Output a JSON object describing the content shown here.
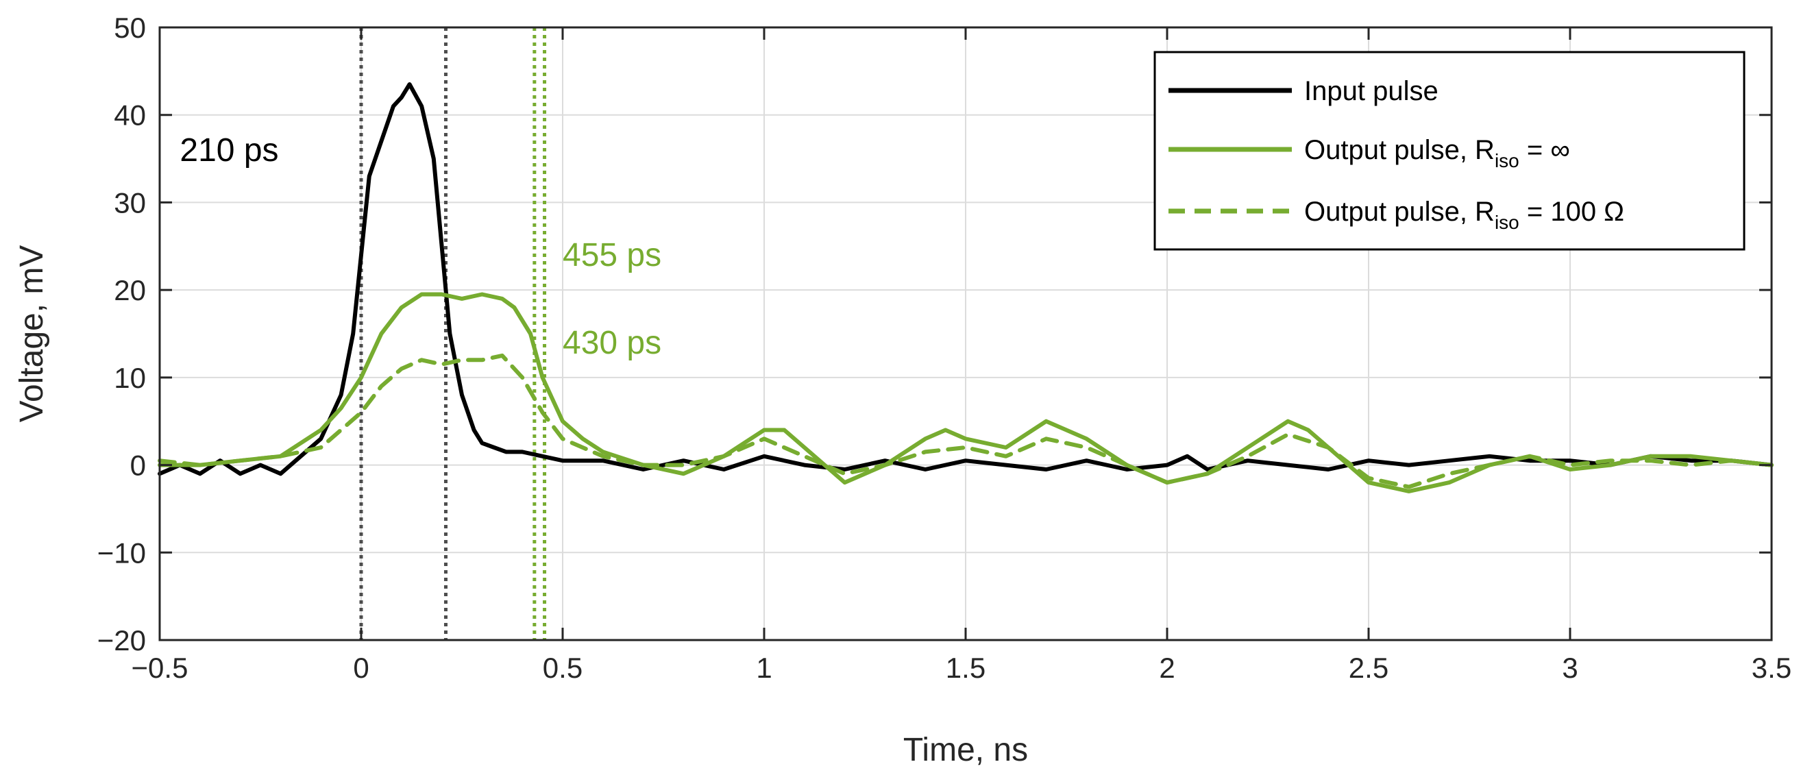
{
  "chart_data": {
    "type": "line",
    "xlabel": "Time, ns",
    "ylabel": "Voltage, mV",
    "xlim": [
      -0.5,
      3.5
    ],
    "ylim": [
      -20,
      50
    ],
    "xticks": [
      -0.5,
      0,
      0.5,
      1,
      1.5,
      2,
      2.5,
      3,
      3.5
    ],
    "xtick_labels": [
      "−0.5",
      "0",
      "0.5",
      "1",
      "1.5",
      "2",
      "2.5",
      "3",
      "3.5"
    ],
    "yticks": [
      -20,
      -10,
      0,
      10,
      20,
      30,
      40,
      50
    ],
    "ytick_labels": [
      "−20",
      "−10",
      "0",
      "10",
      "20",
      "30",
      "40",
      "50"
    ],
    "grid": true,
    "legend_position": "top-right",
    "colors": {
      "input": "#000000",
      "output": "#77AC30",
      "marker_input": "#4D4D4D",
      "marker_output": "#77AC30"
    },
    "series": [
      {
        "name": "Input pulse",
        "legend_parts": [
          "Input pulse"
        ],
        "style": "solid",
        "color": "#000000",
        "x": [
          -0.5,
          -0.45,
          -0.4,
          -0.35,
          -0.3,
          -0.25,
          -0.2,
          -0.15,
          -0.1,
          -0.05,
          -0.02,
          0,
          0.02,
          0.05,
          0.08,
          0.1,
          0.12,
          0.15,
          0.18,
          0.2,
          0.22,
          0.25,
          0.28,
          0.3,
          0.33,
          0.36,
          0.4,
          0.45,
          0.5,
          0.6,
          0.7,
          0.8,
          0.9,
          1.0,
          1.1,
          1.2,
          1.3,
          1.4,
          1.5,
          1.6,
          1.7,
          1.8,
          1.9,
          2.0,
          2.05,
          2.1,
          2.2,
          2.3,
          2.4,
          2.5,
          2.6,
          2.7,
          2.8,
          2.9,
          3.0,
          3.1,
          3.2,
          3.3,
          3.4,
          3.5
        ],
        "y": [
          -1,
          0,
          -1,
          0.5,
          -1,
          0,
          -1,
          1,
          3,
          8,
          15,
          24,
          33,
          37,
          41,
          42,
          43.5,
          41,
          35,
          25,
          15,
          8,
          4,
          2.5,
          2,
          1.5,
          1.5,
          1,
          0.5,
          0.5,
          -0.5,
          0.5,
          -0.5,
          1,
          0,
          -0.5,
          0.5,
          -0.5,
          0.5,
          0,
          -0.5,
          0.5,
          -0.5,
          0,
          1,
          -0.5,
          0.5,
          0,
          -0.5,
          0.5,
          0,
          0.5,
          1,
          0.5,
          0.5,
          0,
          1,
          0.5,
          0.5,
          0
        ]
      },
      {
        "name": "Output pulse, R_iso = ∞",
        "legend_parts": [
          "Output pulse, R",
          "iso",
          " = ∞"
        ],
        "style": "solid",
        "color": "#77AC30",
        "x": [
          -0.5,
          -0.4,
          -0.3,
          -0.2,
          -0.15,
          -0.1,
          -0.05,
          0,
          0.05,
          0.1,
          0.15,
          0.2,
          0.25,
          0.3,
          0.35,
          0.38,
          0.42,
          0.45,
          0.5,
          0.55,
          0.6,
          0.7,
          0.8,
          0.9,
          1.0,
          1.05,
          1.1,
          1.2,
          1.3,
          1.4,
          1.45,
          1.5,
          1.6,
          1.7,
          1.75,
          1.8,
          1.9,
          2.0,
          2.1,
          2.2,
          2.3,
          2.35,
          2.4,
          2.5,
          2.6,
          2.7,
          2.8,
          2.9,
          3.0,
          3.1,
          3.2,
          3.3,
          3.4,
          3.5
        ],
        "y": [
          0,
          0,
          0.5,
          1,
          2.5,
          4,
          6.5,
          10,
          15,
          18,
          19.5,
          19.5,
          19,
          19.5,
          19,
          18,
          15,
          10,
          5,
          3,
          1.5,
          0,
          -1,
          1,
          4,
          4,
          2,
          -2,
          0,
          3,
          4,
          3,
          2,
          5,
          4,
          3,
          0,
          -2,
          -1,
          2,
          5,
          4,
          2,
          -2,
          -3,
          -2,
          0,
          1,
          -0.5,
          0,
          1,
          1,
          0.5,
          0
        ]
      },
      {
        "name": "Output pulse, R_iso = 100 Ω",
        "legend_parts": [
          "Output pulse, R",
          "iso",
          " = 100 Ω"
        ],
        "style": "dashed",
        "color": "#77AC30",
        "x": [
          -0.5,
          -0.4,
          -0.3,
          -0.2,
          -0.1,
          0,
          0.05,
          0.1,
          0.15,
          0.2,
          0.25,
          0.3,
          0.35,
          0.4,
          0.45,
          0.5,
          0.6,
          0.7,
          0.8,
          0.9,
          1.0,
          1.1,
          1.2,
          1.3,
          1.4,
          1.5,
          1.6,
          1.7,
          1.8,
          1.9,
          2.0,
          2.1,
          2.2,
          2.3,
          2.4,
          2.5,
          2.6,
          2.7,
          2.8,
          2.9,
          3.0,
          3.1,
          3.2,
          3.3,
          3.4,
          3.5
        ],
        "y": [
          0.5,
          0,
          0.5,
          1,
          2,
          6,
          9,
          11,
          12,
          11.5,
          12,
          12,
          12.5,
          10,
          6,
          3,
          1,
          0,
          0,
          1,
          3,
          1,
          -1,
          0,
          1.5,
          2,
          1,
          3,
          2,
          0,
          -2,
          -1,
          1,
          3.5,
          2,
          -1.5,
          -2.5,
          -1,
          0,
          1,
          0,
          0.5,
          0.5,
          0,
          0.5,
          0
        ]
      }
    ],
    "vertical_markers": [
      {
        "x": 0,
        "color": "#4D4D4D"
      },
      {
        "x": 0.21,
        "color": "#4D4D4D"
      },
      {
        "x": 0.43,
        "color": "#77AC30"
      },
      {
        "x": 0.455,
        "color": "#77AC30"
      }
    ],
    "annotations": [
      {
        "text": "210 ps",
        "x": -0.45,
        "y": 36,
        "color": "#000000"
      },
      {
        "text": "455 ps",
        "x": 0.5,
        "y": 24,
        "color": "#77AC30"
      },
      {
        "text": "430 ps",
        "x": 0.5,
        "y": 14,
        "color": "#77AC30"
      }
    ]
  }
}
